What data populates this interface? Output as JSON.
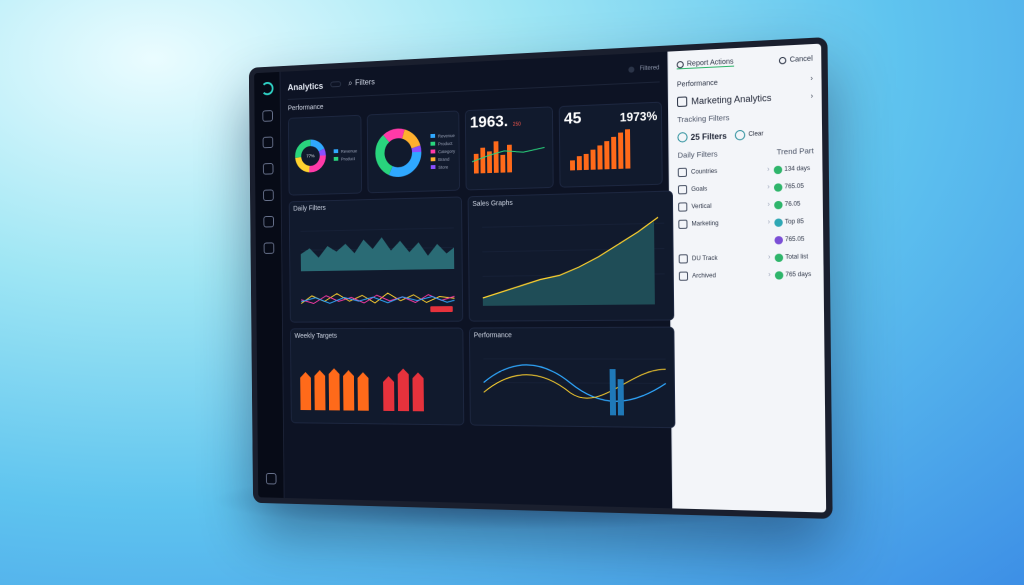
{
  "header": {
    "title": "Analytics",
    "subtitle": "",
    "button_label": "",
    "search_label": "Filters",
    "right_text": "Filtered"
  },
  "sections": {
    "top_label": "Performance",
    "daily_label": "Daily Filters",
    "sales_label": "Sales Graphs",
    "weekly_label": "Weekly Targets",
    "bottom_right_label": "Performance"
  },
  "kpis": {
    "main_value": "1963.",
    "main_delta": "250",
    "secondary_value": "45",
    "percent_value": "1973%"
  },
  "donut_legends": [
    "Revenue",
    "Product",
    "Category",
    "Brand",
    "Store"
  ],
  "panel": {
    "tab_active": "Report Actions",
    "tab_other": "Cancel",
    "row1": "Performance",
    "heading": "Marketing Analytics",
    "tracking_label": "Tracking Filters",
    "filter_count": "25",
    "filter_label": "Filters",
    "filter_sub": "",
    "clear_label": "Clear",
    "daily_filters_label": "Daily Filters",
    "trend_label": "Trend Part",
    "items": [
      {
        "name": "Countries",
        "value": "134 days",
        "color": "#2fb56b"
      },
      {
        "name": "Goals",
        "value": "765.05",
        "color": "#2fb56b"
      },
      {
        "name": "Vertical",
        "value": "76.05",
        "color": "#2fb56b"
      },
      {
        "name": "Marketing",
        "value": "Top 85",
        "color": "#2fa8b5"
      },
      {
        "name": "",
        "value": "765.05",
        "color": "#7b4fd6"
      },
      {
        "name": "DU Track",
        "value": "Total list",
        "color": "#2fb56b"
      },
      {
        "name": "Archived",
        "value": "765 days",
        "color": "#2fb56b"
      }
    ]
  },
  "colors": {
    "accent_green": "#2fb56b",
    "bar_orange": "#ff6a1a",
    "bar_red": "#e6323c",
    "area_teal": "#2a6b75"
  }
}
